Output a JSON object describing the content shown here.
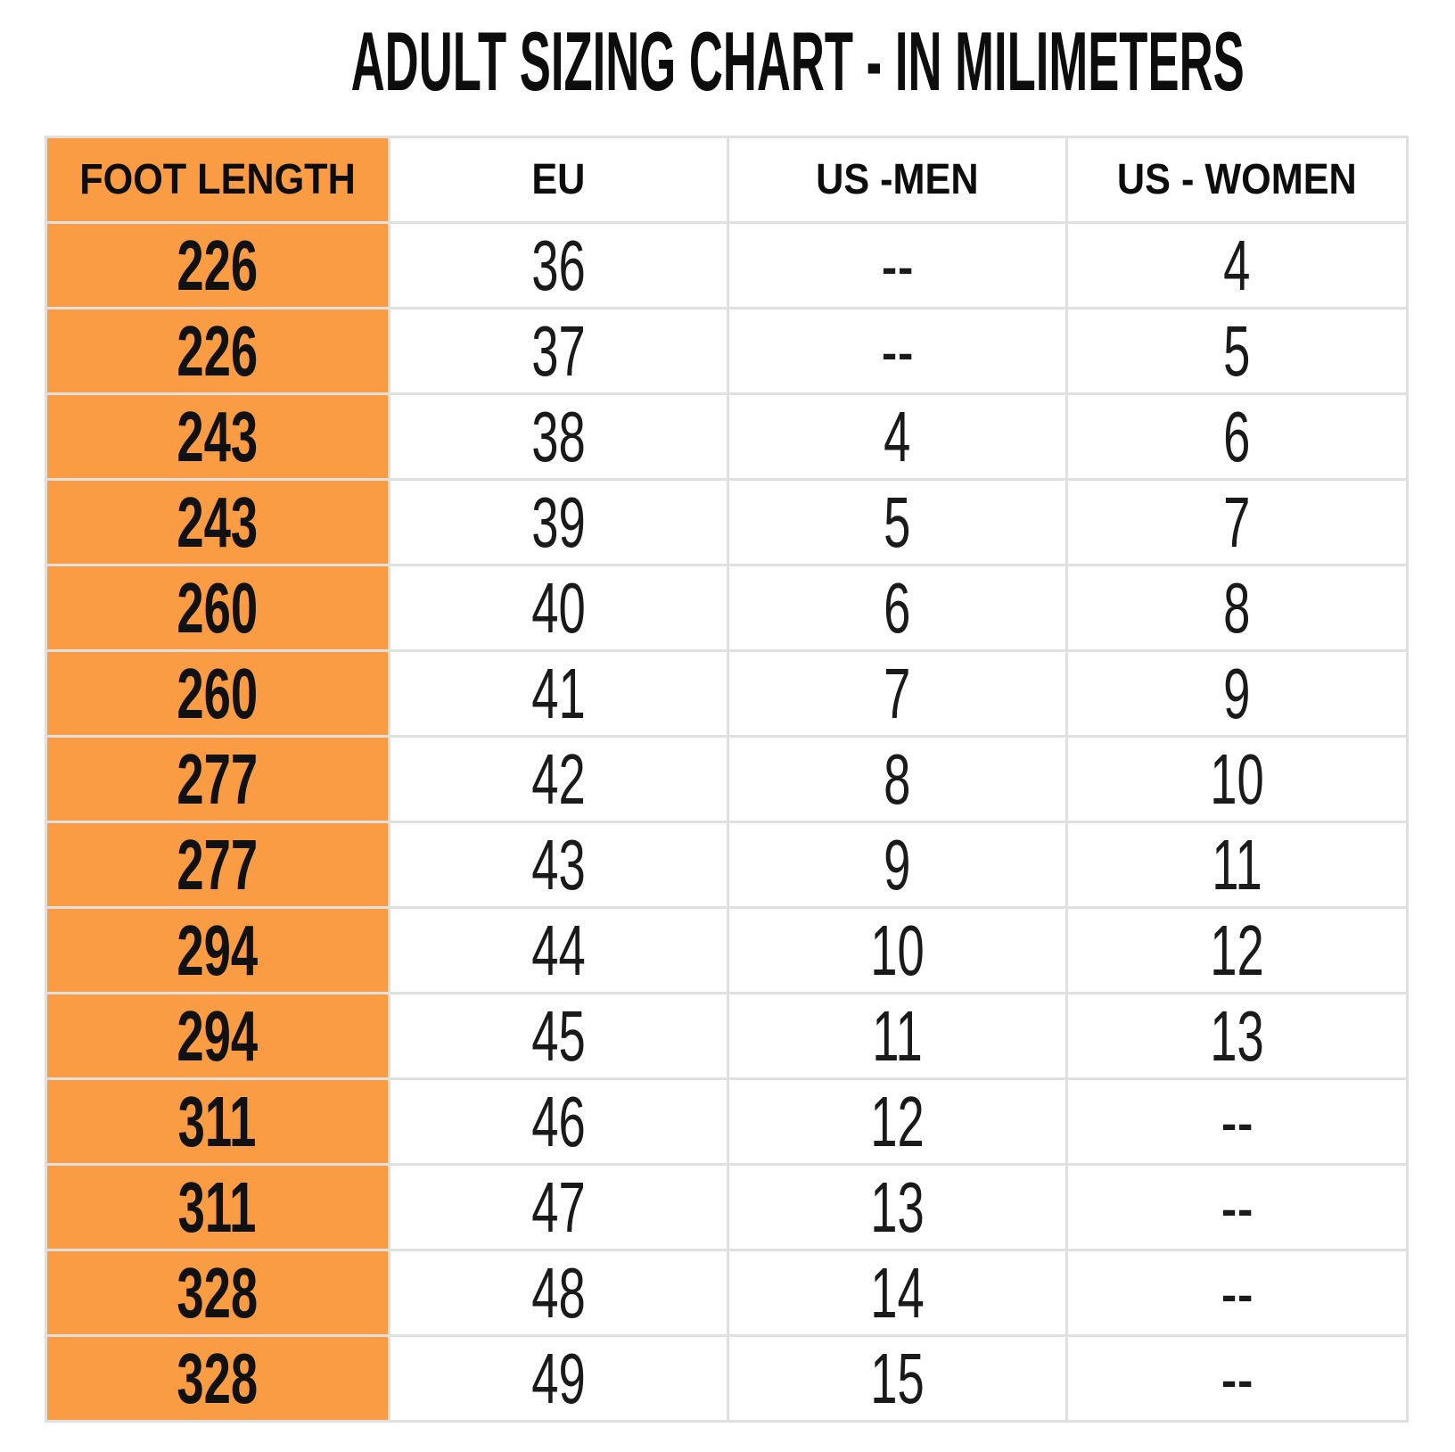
{
  "title": "ADULT SIZING CHART - IN MILIMETERS",
  "colors": {
    "header_fill": "#f99c44",
    "grid_line": "#e0e0e0",
    "text": "#111111",
    "background": "#ffffff"
  },
  "chart_data": {
    "type": "table",
    "title": "ADULT SIZING CHART - IN MILIMETERS",
    "columns": [
      "FOOT LENGTH",
      "EU",
      "US -MEN",
      "US - WOMEN"
    ],
    "rows": [
      [
        "226",
        "36",
        "--",
        "4"
      ],
      [
        "226",
        "37",
        "--",
        "5"
      ],
      [
        "243",
        "38",
        "4",
        "6"
      ],
      [
        "243",
        "39",
        "5",
        "7"
      ],
      [
        "260",
        "40",
        "6",
        "8"
      ],
      [
        "260",
        "41",
        "7",
        "9"
      ],
      [
        "277",
        "42",
        "8",
        "10"
      ],
      [
        "277",
        "43",
        "9",
        "11"
      ],
      [
        "294",
        "44",
        "10",
        "12"
      ],
      [
        "294",
        "45",
        "11",
        "13"
      ],
      [
        "311",
        "46",
        "12",
        "--"
      ],
      [
        "311",
        "47",
        "13",
        "--"
      ],
      [
        "328",
        "48",
        "14",
        "--"
      ],
      [
        "328",
        "49",
        "15",
        "--"
      ]
    ],
    "layout": {
      "first_column_highlighted": true,
      "grid": true,
      "units": "millimeters"
    }
  }
}
